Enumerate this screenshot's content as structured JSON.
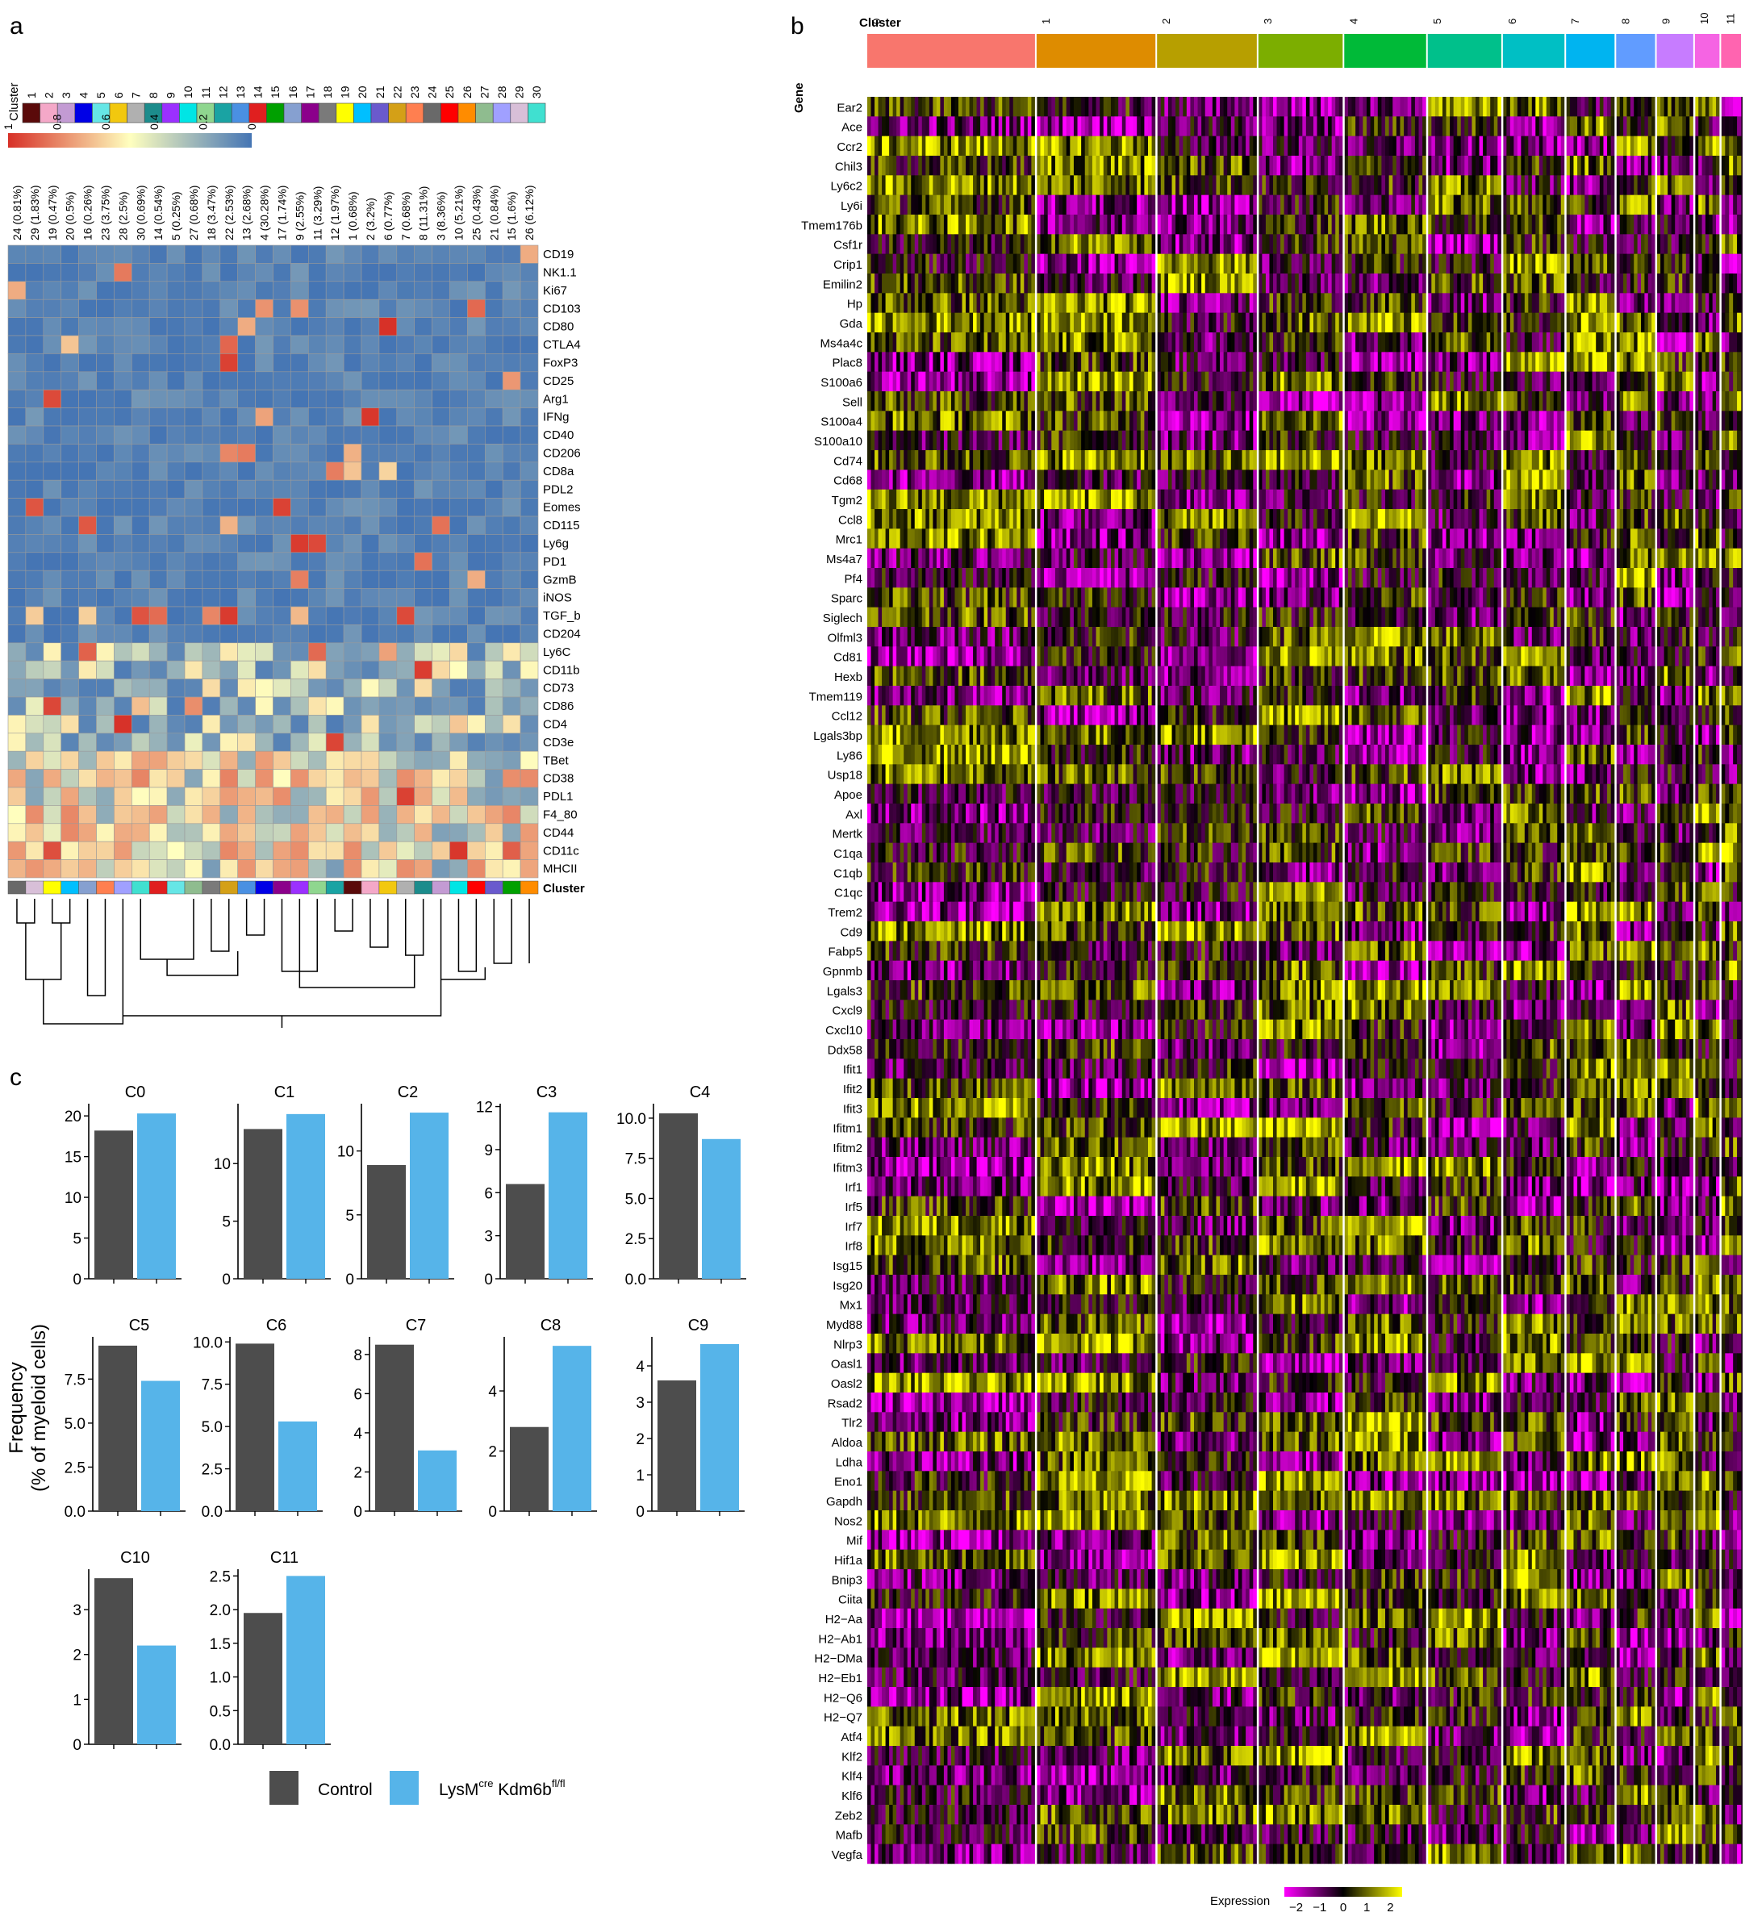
{
  "panel_labels": {
    "a": "a",
    "b": "b",
    "c": "c"
  },
  "colors": {
    "control": "#4d4d4d",
    "ko": "#56b4e9",
    "heat_high": "#d73027",
    "heat_mid": "#ffffbf",
    "heat_low": "#4575b4",
    "expr_low": "#ff00ff",
    "expr_mid": "#000000",
    "expr_high": "#ffff00"
  },
  "chart_data": [
    {
      "type": "heatmap",
      "panel": "a",
      "cluster_label": "Cluster",
      "bottom_cluster_label": "Cluster",
      "legend_clusters": [
        "1",
        "2",
        "3",
        "4",
        "5",
        "6",
        "7",
        "8",
        "9",
        "10",
        "11",
        "12",
        "13",
        "14",
        "15",
        "16",
        "17",
        "18",
        "19",
        "20",
        "21",
        "22",
        "23",
        "24",
        "25",
        "26",
        "27",
        "28",
        "29",
        "30"
      ],
      "legend_colors": [
        "#5a0a0a",
        "#f4a8c8",
        "#c39bd3",
        "#0000e6",
        "#66e6e6",
        "#f2c80f",
        "#b0b0b0",
        "#1c8c8c",
        "#9b30ff",
        "#00e5e5",
        "#8fd68f",
        "#1aa3a3",
        "#4a90e2",
        "#e01f1f",
        "#00a000",
        "#86a0d0",
        "#8b008b",
        "#7a7a7a",
        "#ffff00",
        "#00bfff",
        "#6a5acd",
        "#d4a017",
        "#ff7f50",
        "#696969",
        "#ff0000",
        "#ff8c00",
        "#8fbc8f",
        "#a0a0ff",
        "#d8bfd8",
        "#40e0d0"
      ],
      "scale_ticks": [
        "1",
        "0.8",
        "0.6",
        "0.4",
        "0.2",
        "0"
      ],
      "columns": [
        "24 (0.81%)",
        "29 (1.83%)",
        "19 (0.47%)",
        "20 (0.5%)",
        "16 (0.26%)",
        "23 (3.75%)",
        "28 (2.5%)",
        "30 (0.69%)",
        "14 (0.54%)",
        "5 (0.25%)",
        "27 (0.68%)",
        "18 (3.47%)",
        "22 (2.53%)",
        "13 (2.68%)",
        "4 (30.28%)",
        "17 (1.74%)",
        "9 (2.55%)",
        "11 (3.29%)",
        "12 (1.97%)",
        "1 (0.68%)",
        "2 (3.2%)",
        "6 (0.77%)",
        "7 (0.68%)",
        "8 (11.31%)",
        "3 (8.36%)",
        "10 (5.21%)",
        "25 (0.43%)",
        "21 (0.84%)",
        "15 (1.6%)",
        "26 (6.12%)"
      ],
      "rows": [
        "CD19",
        "NK1.1",
        "Ki67",
        "CD103",
        "CD80",
        "CTLA4",
        "FoxP3",
        "CD25",
        "Arg1",
        "IFNg",
        "CD40",
        "CD206",
        "CD8a",
        "PDL2",
        "Eomes",
        "CD115",
        "Ly6g",
        "PD1",
        "GzmB",
        "iNOS",
        "TGF_b",
        "CD204",
        "Ly6C",
        "CD11b",
        "CD73",
        "CD86",
        "CD4",
        "CD3e",
        "TBet",
        "CD38",
        "PDL1",
        "F4_80",
        "CD44",
        "CD11c",
        "MHCII"
      ],
      "notes_values": "normalized 0-1 marker expression per cluster"
    },
    {
      "type": "heatmap",
      "panel": "b",
      "cluster_title": "Cluster",
      "gene_title": "Gene",
      "clusters": [
        "0",
        "1",
        "2",
        "3",
        "4",
        "5",
        "6",
        "7",
        "8",
        "9",
        "10",
        "11"
      ],
      "cluster_colors": [
        "#f8766d",
        "#de8c00",
        "#b79f00",
        "#7cae00",
        "#00ba38",
        "#00c08b",
        "#00bfc4",
        "#00b4f0",
        "#619cff",
        "#c77cff",
        "#f564e3",
        "#ff64b0"
      ],
      "cluster_fraction": [
        0.142,
        0.101,
        0.085,
        0.072,
        0.07,
        0.063,
        0.053,
        0.042,
        0.034,
        0.032,
        0.022,
        0.018
      ],
      "genes": [
        "Ear2",
        "Ace",
        "Ccr2",
        "Chil3",
        "Ly6c2",
        "Ly6i",
        "Tmem176b",
        "Csf1r",
        "Crip1",
        "Emilin2",
        "Hp",
        "Gda",
        "Ms4a4c",
        "Plac8",
        "S100a6",
        "Sell",
        "S100a4",
        "S100a10",
        "Cd74",
        "Cd68",
        "Tgm2",
        "Ccl8",
        "Mrc1",
        "Ms4a7",
        "Pf4",
        "Sparc",
        "Siglech",
        "Olfml3",
        "Cd81",
        "Hexb",
        "Tmem119",
        "Ccl12",
        "Lgals3bp",
        "Ly86",
        "Usp18",
        "Apoe",
        "Axl",
        "Mertk",
        "C1qa",
        "C1qb",
        "C1qc",
        "Trem2",
        "Cd9",
        "Fabp5",
        "Gpnmb",
        "Lgals3",
        "Cxcl9",
        "Cxcl10",
        "Ddx58",
        "Ifit1",
        "Ifit2",
        "Ifit3",
        "Ifitm1",
        "Ifitm2",
        "Ifitm3",
        "Irf1",
        "Irf5",
        "Irf7",
        "Irf8",
        "Isg15",
        "Isg20",
        "Mx1",
        "Myd88",
        "Nlrp3",
        "Oasl1",
        "Oasl2",
        "Rsad2",
        "Tlr2",
        "Aldoa",
        "Ldha",
        "Eno1",
        "Gapdh",
        "Nos2",
        "Mif",
        "Hif1a",
        "Bnip3",
        "Ciita",
        "H2−Aa",
        "H2−Ab1",
        "H2−DMa",
        "H2−Eb1",
        "H2−Q6",
        "H2−Q7",
        "Atf4",
        "Klf2",
        "Klf4",
        "Klf6",
        "Zeb2",
        "Mafb",
        "Vegfa"
      ],
      "legend_title": "Expression",
      "legend_ticks": [
        "−2",
        "−1",
        "0",
        "1",
        "2"
      ],
      "legend_range": [
        -2.5,
        2.5
      ]
    },
    {
      "type": "bar",
      "panel": "c",
      "ylabel_line1": "Frequency",
      "ylabel_line2": "(% of myeloid cells)",
      "series_names": [
        "Control",
        "LysM",
        "cre",
        " Kdm6b",
        "fl/fl"
      ],
      "subplots": [
        {
          "title": "C0",
          "values": [
            18.2,
            20.3
          ],
          "ymax": 21.5,
          "ticks": [
            "0",
            "5",
            "10",
            "15",
            "20"
          ],
          "tickvals": [
            0,
            5,
            10,
            15,
            20
          ]
        },
        {
          "title": "C1",
          "values": [
            13.0,
            14.3
          ],
          "ymax": 15.2,
          "ticks": [
            "0",
            "5",
            "10"
          ],
          "tickvals": [
            0,
            5,
            10
          ]
        },
        {
          "title": "C2",
          "values": [
            8.9,
            13.0
          ],
          "ymax": 13.7,
          "ticks": [
            "0",
            "5",
            "10"
          ],
          "tickvals": [
            0,
            5,
            10
          ]
        },
        {
          "title": "C3",
          "values": [
            6.6,
            11.6
          ],
          "ymax": 12.2,
          "ticks": [
            "0",
            "3",
            "6",
            "9",
            "12"
          ],
          "tickvals": [
            0,
            3,
            6,
            9,
            12
          ]
        },
        {
          "title": "C4",
          "values": [
            10.3,
            8.7
          ],
          "ymax": 10.9,
          "ticks": [
            "0.0",
            "2.5",
            "5.0",
            "7.5",
            "10.0"
          ],
          "tickvals": [
            0,
            2.5,
            5,
            7.5,
            10
          ]
        },
        {
          "title": "C5",
          "values": [
            9.4,
            7.4
          ],
          "ymax": 9.9,
          "ticks": [
            "0.0",
            "2.5",
            "5.0",
            "7.5"
          ],
          "tickvals": [
            0,
            2.5,
            5,
            7.5
          ]
        },
        {
          "title": "C6",
          "values": [
            9.9,
            5.3
          ],
          "ymax": 10.3,
          "ticks": [
            "0.0",
            "2.5",
            "5.0",
            "7.5",
            "10.0"
          ],
          "tickvals": [
            0,
            2.5,
            5,
            7.5,
            10
          ]
        },
        {
          "title": "C7",
          "values": [
            8.5,
            3.1
          ],
          "ymax": 8.9,
          "ticks": [
            "0",
            "2",
            "4",
            "6",
            "8"
          ],
          "tickvals": [
            0,
            2,
            4,
            6,
            8
          ]
        },
        {
          "title": "C8",
          "values": [
            2.8,
            5.5
          ],
          "ymax": 5.8,
          "ticks": [
            "0",
            "2",
            "4"
          ],
          "tickvals": [
            0,
            2,
            4
          ]
        },
        {
          "title": "C9",
          "values": [
            3.6,
            4.6
          ],
          "ymax": 4.8,
          "ticks": [
            "0",
            "1",
            "2",
            "3",
            "4"
          ],
          "tickvals": [
            0,
            1,
            2,
            3,
            4
          ]
        },
        {
          "title": "C10",
          "values": [
            3.7,
            2.2
          ],
          "ymax": 3.9,
          "ticks": [
            "0",
            "1",
            "2",
            "3"
          ],
          "tickvals": [
            0,
            1,
            2,
            3
          ]
        },
        {
          "title": "C11",
          "values": [
            1.95,
            2.5
          ],
          "ymax": 2.6,
          "ticks": [
            "0.0",
            "0.5",
            "1.0",
            "1.5",
            "2.0",
            "2.5"
          ],
          "tickvals": [
            0,
            0.5,
            1,
            1.5,
            2,
            2.5
          ]
        }
      ]
    }
  ]
}
